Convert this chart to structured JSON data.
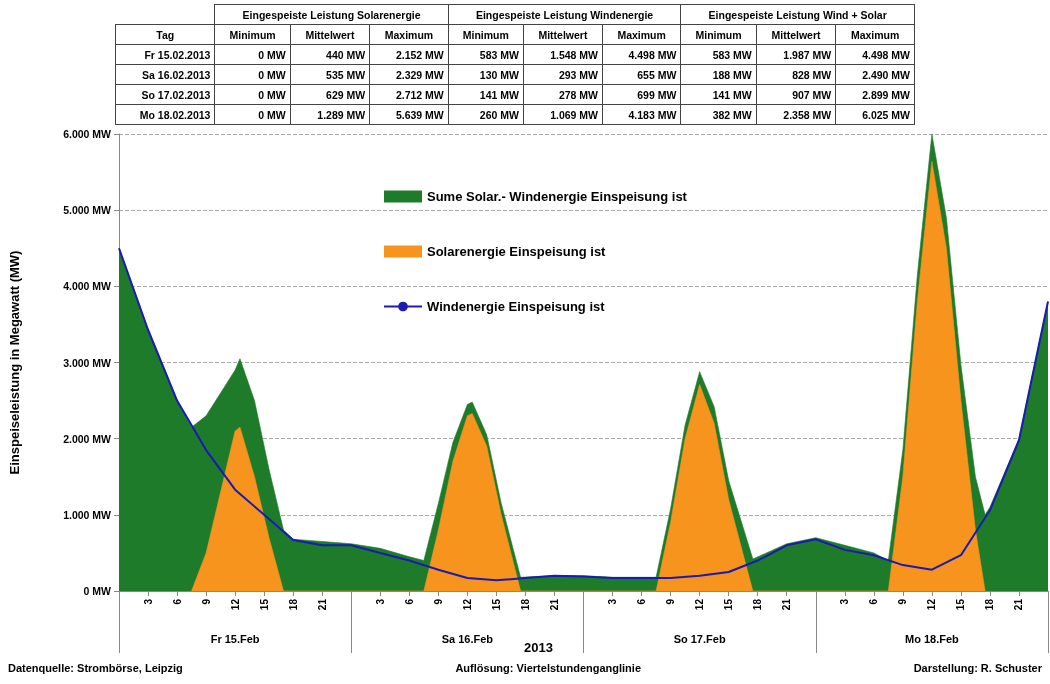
{
  "chart_data": [
    {
      "type": "area",
      "xlabel": "2013",
      "ylabel": "Einspeiseleistung in Megawatt (MW)",
      "xlim": [
        "2013-02-15T00:00",
        "2013-02-19T00:00"
      ],
      "xticks": [
        {
          "value": "2013-02-15T00:00",
          "label": null
        },
        {
          "value": "2013-02-16T00:00",
          "label": null
        },
        {
          "value": "2013-02-17T00:00",
          "label": null
        },
        {
          "value": "2013-02-18T00:00",
          "label": null
        },
        {
          "value": "2013-02-19T00:00",
          "label": null
        },
        {
          "value": "2013-02-15T03:00",
          "label": "3"
        },
        {
          "value": "2013-02-15T06:00",
          "label": "6"
        },
        {
          "value": "2013-02-15T09:00",
          "label": "9"
        },
        {
          "value": "2013-02-15T12:00",
          "label": "12"
        },
        {
          "value": "2013-02-15T15:00",
          "label": "15"
        },
        {
          "value": "2013-02-15T18:00",
          "label": "18"
        },
        {
          "value": "2013-02-15T21:00",
          "label": "21"
        },
        {
          "value": "2013-02-16T03:00",
          "label": "3"
        },
        {
          "value": "2013-02-16T06:00",
          "label": "6"
        },
        {
          "value": "2013-02-16T09:00",
          "label": "9"
        },
        {
          "value": "2013-02-16T12:00",
          "label": "12"
        },
        {
          "value": "2013-02-16T15:00",
          "label": "15"
        },
        {
          "value": "2013-02-16T18:00",
          "label": "18"
        },
        {
          "value": "2013-02-16T21:00",
          "label": "21"
        },
        {
          "value": "2013-02-17T03:00",
          "label": "3"
        },
        {
          "value": "2013-02-17T06:00",
          "label": "6"
        },
        {
          "value": "2013-02-17T09:00",
          "label": "9"
        },
        {
          "value": "2013-02-17T12:00",
          "label": "12"
        },
        {
          "value": "2013-02-17T15:00",
          "label": "15"
        },
        {
          "value": "2013-02-17T18:00",
          "label": "18"
        },
        {
          "value": "2013-02-17T21:00",
          "label": "21"
        },
        {
          "value": "2013-02-18T03:00",
          "label": "3"
        },
        {
          "value": "2013-02-18T06:00",
          "label": "6"
        },
        {
          "value": "2013-02-18T09:00",
          "label": "9"
        },
        {
          "value": "2013-02-18T12:00",
          "label": "12"
        },
        {
          "value": "2013-02-18T15:00",
          "label": "15"
        },
        {
          "value": "2013-02-18T18:00",
          "label": "18"
        },
        {
          "value": "2013-02-18T21:00",
          "label": "21"
        }
      ],
      "x2lim": [
        "2013-02-15T00:00",
        "2013-02-19T00:00"
      ],
      "x2ticks": [
        {
          "value": "2013-02-15T12:00",
          "label": "Fr 15.Feb"
        },
        {
          "value": "2013-02-16T12:00",
          "label": "Sa 16.Feb"
        },
        {
          "value": "2013-02-17T12:00",
          "label": "So 17.Feb"
        },
        {
          "value": "2013-02-18T12:00",
          "label": "Mo 18.Feb"
        }
      ],
      "ylim": [
        0,
        6000
      ],
      "yticks": [
        {
          "value": 0,
          "label": "0 MW"
        },
        {
          "value": 1000,
          "label": "1.000 MW"
        },
        {
          "value": 2000,
          "label": "2.000 MW"
        },
        {
          "value": 3000,
          "label": "3.000 MW"
        },
        {
          "value": 4000,
          "label": "4.000 MW"
        },
        {
          "value": 5000,
          "label": "5.000 MW"
        },
        {
          "value": 6000,
          "label": "6.000 MW"
        }
      ],
      "grid": "y",
      "legend": "top",
      "marker": "none",
      "series": [
        {
          "name": "Sume Solar.- Windenergie Einspeisung ist",
          "type": "area",
          "color": "#1e7b2a",
          "x": [
            "2013-02-15T00:00",
            "2013-02-15T03:00",
            "2013-02-15T06:00",
            "2013-02-15T07:30",
            "2013-02-15T09:00",
            "2013-02-15T10:30",
            "2013-02-15T12:00",
            "2013-02-15T12:30",
            "2013-02-15T14:00",
            "2013-02-15T15:30",
            "2013-02-15T17:00",
            "2013-02-15T18:00",
            "2013-02-15T21:00",
            "2013-02-16T00:00",
            "2013-02-16T03:00",
            "2013-02-16T06:00",
            "2013-02-16T07:30",
            "2013-02-16T09:00",
            "2013-02-16T10:30",
            "2013-02-16T12:00",
            "2013-02-16T12:30",
            "2013-02-16T14:00",
            "2013-02-16T15:30",
            "2013-02-16T17:30",
            "2013-02-16T21:00",
            "2013-02-17T00:00",
            "2013-02-17T03:00",
            "2013-02-17T06:00",
            "2013-02-17T07:30",
            "2013-02-17T09:00",
            "2013-02-17T10:30",
            "2013-02-17T12:00",
            "2013-02-17T13:30",
            "2013-02-17T15:00",
            "2013-02-17T17:30",
            "2013-02-17T21:00",
            "2013-02-18T00:00",
            "2013-02-18T03:00",
            "2013-02-18T06:00",
            "2013-02-18T07:30",
            "2013-02-18T09:00",
            "2013-02-18T10:30",
            "2013-02-18T12:00",
            "2013-02-18T13:30",
            "2013-02-18T15:00",
            "2013-02-18T16:30",
            "2013-02-18T17:30",
            "2013-02-18T18:00",
            "2013-02-18T21:00",
            "2013-02-19T00:00"
          ],
          "values": [
            4500,
            3430,
            2500,
            2150,
            2300,
            2600,
            2900,
            3050,
            2500,
            1600,
            800,
            680,
            650,
            620,
            560,
            450,
            400,
            1150,
            1950,
            2450,
            2480,
            2050,
            1150,
            180,
            200,
            200,
            180,
            180,
            180,
            1080,
            2180,
            2880,
            2420,
            1450,
            420,
            620,
            700,
            600,
            500,
            400,
            1850,
            4150,
            6000,
            4900,
            2970,
            1500,
            1000,
            1100,
            2000,
            3800
          ]
        },
        {
          "name": "Solarenergie Einspeisung ist",
          "type": "area",
          "color": "#f7941d",
          "x": [
            "2013-02-15T07:30",
            "2013-02-15T09:00",
            "2013-02-15T10:30",
            "2013-02-15T12:00",
            "2013-02-15T12:30",
            "2013-02-15T14:00",
            "2013-02-15T15:30",
            "2013-02-15T17:00",
            "2013-02-16T07:30",
            "2013-02-16T09:00",
            "2013-02-16T10:30",
            "2013-02-16T12:00",
            "2013-02-16T12:30",
            "2013-02-16T14:00",
            "2013-02-16T15:30",
            "2013-02-16T17:30",
            "2013-02-17T07:30",
            "2013-02-17T09:00",
            "2013-02-17T10:30",
            "2013-02-17T12:00",
            "2013-02-17T13:30",
            "2013-02-17T15:00",
            "2013-02-17T17:30",
            "2013-02-18T07:30",
            "2013-02-18T09:00",
            "2013-02-18T10:30",
            "2013-02-18T12:00",
            "2013-02-18T13:30",
            "2013-02-18T15:00",
            "2013-02-18T16:30",
            "2013-02-18T17:30"
          ],
          "values": [
            0,
            500,
            1300,
            2100,
            2150,
            1500,
            700,
            0,
            0,
            800,
            1700,
            2300,
            2330,
            1900,
            1000,
            0,
            0,
            900,
            2000,
            2710,
            2200,
            1200,
            0,
            0,
            1500,
            3800,
            5640,
            4500,
            2500,
            800,
            0
          ]
        },
        {
          "name": "Windenergie Einspeisung ist",
          "type": "line",
          "color": "#1a1ab4",
          "x": [
            "2013-02-15T00:00",
            "2013-02-15T03:00",
            "2013-02-15T06:00",
            "2013-02-15T09:00",
            "2013-02-15T12:00",
            "2013-02-15T15:00",
            "2013-02-15T18:00",
            "2013-02-15T21:00",
            "2013-02-16T00:00",
            "2013-02-16T03:00",
            "2013-02-16T06:00",
            "2013-02-16T09:00",
            "2013-02-16T12:00",
            "2013-02-16T15:00",
            "2013-02-16T18:00",
            "2013-02-16T21:00",
            "2013-02-17T00:00",
            "2013-02-17T03:00",
            "2013-02-17T06:00",
            "2013-02-17T09:00",
            "2013-02-17T12:00",
            "2013-02-17T15:00",
            "2013-02-17T18:00",
            "2013-02-17T21:00",
            "2013-02-18T00:00",
            "2013-02-18T03:00",
            "2013-02-18T06:00",
            "2013-02-18T09:00",
            "2013-02-18T12:00",
            "2013-02-18T15:00",
            "2013-02-18T18:00",
            "2013-02-18T21:00",
            "2013-02-19T00:00"
          ],
          "values": [
            4500,
            3430,
            2500,
            1850,
            1330,
            1000,
            670,
            600,
            600,
            500,
            400,
            280,
            170,
            140,
            170,
            200,
            190,
            170,
            170,
            170,
            200,
            250,
            400,
            600,
            680,
            540,
            470,
            340,
            280,
            470,
            1060,
            1980,
            3800
          ]
        }
      ],
      "annotations": [
        "Datenquelle: Strombörse, Leipzig",
        "Auflösung: Viertelstundenganglinie",
        "Darstellung: R. Schuster"
      ]
    },
    {
      "type": "other",
      "annotations": [
        "Eingespeiste Leistung Solarenergie",
        "Eingespeiste Leistung Windenergie",
        "Eingespeiste Leistung Wind + Solar",
        "Tag",
        "Minimum",
        "Mittelwert",
        "Maximum",
        "Minimum",
        "Mittelwert",
        "Maximum",
        "Minimum",
        "Mittelwert",
        "Maximum",
        "Fr 15.02.2013",
        "0 MW",
        "440 MW",
        "2.152 MW",
        "583 MW",
        "1.548 MW",
        "4.498 MW",
        "583 MW",
        "1.987 MW",
        "4.498 MW",
        "Sa 16.02.2013",
        "0 MW",
        "535 MW",
        "2.329 MW",
        "130 MW",
        "293 MW",
        "655 MW",
        "188 MW",
        "828 MW",
        "2.490 MW",
        "So 17.02.2013",
        "0 MW",
        "629 MW",
        "2.712 MW",
        "141 MW",
        "278 MW",
        "699 MW",
        "141 MW",
        "907 MW",
        "2.899 MW",
        "Mo 18.02.2013",
        "0 MW",
        "1.289 MW",
        "5.639 MW",
        "260 MW",
        "1.069 MW",
        "4.183 MW",
        "382 MW",
        "2.358 MW",
        "6.025 MW"
      ]
    }
  ]
}
